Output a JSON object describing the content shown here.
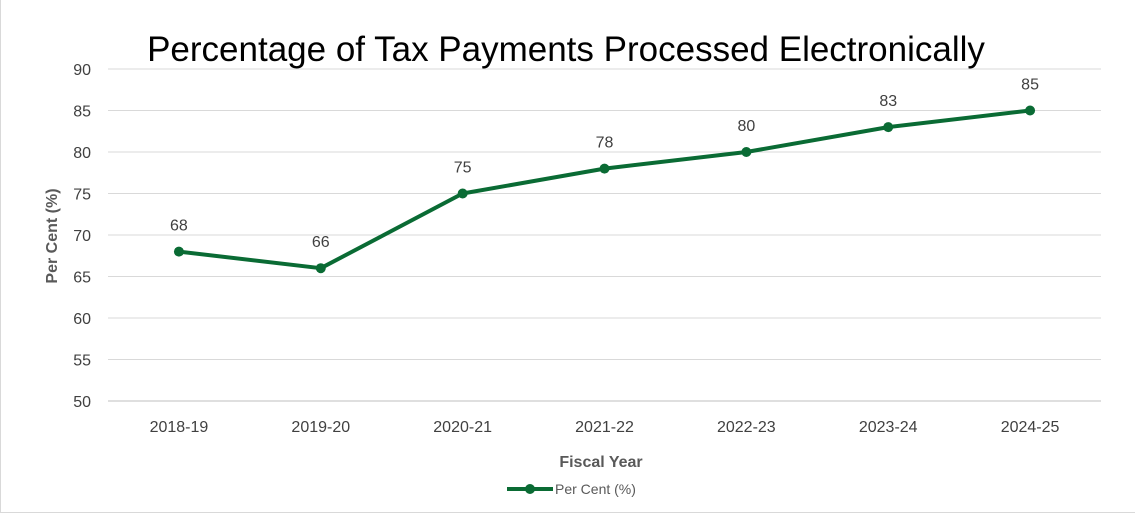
{
  "chart_data": {
    "type": "line",
    "title": "Percentage of Tax Payments Processed Electronically",
    "xlabel": "Fiscal Year",
    "ylabel": "Per Cent (%)",
    "categories": [
      "2018-19",
      "2019-20",
      "2020-21",
      "2021-22",
      "2022-23",
      "2023-24",
      "2024-25"
    ],
    "series": [
      {
        "name": "Per Cent (%)",
        "values": [
          68,
          66,
          75,
          78,
          80,
          83,
          85
        ],
        "color": "#0a6b34"
      }
    ],
    "ylim": [
      50,
      90
    ],
    "yticks": [
      50,
      55,
      60,
      65,
      70,
      75,
      80,
      85,
      90
    ],
    "grid": true,
    "legend": "bottom",
    "data_labels": true
  }
}
